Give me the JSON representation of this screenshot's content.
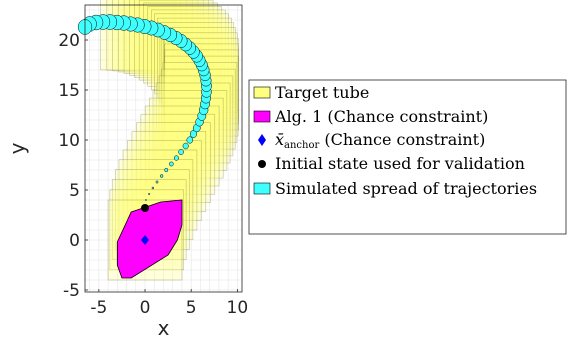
{
  "chart_data": {
    "type": "scatter",
    "xlabel": "x",
    "ylabel": "y",
    "xlim": [
      -6.5,
      10.5
    ],
    "ylim": [
      -5.2,
      23.5
    ],
    "xticks": [
      -5,
      0,
      5,
      10
    ],
    "yticks": [
      -5,
      0,
      5,
      10,
      15,
      20
    ],
    "xtick_labels": [
      "-5",
      "0",
      "5",
      "10"
    ],
    "ytick_labels": [
      "-5",
      "0",
      "5",
      "10",
      "15",
      "20"
    ],
    "grid": true,
    "legend_position": "right",
    "colors": {
      "target_tube": "#ffff80",
      "alg1": "#ff00ff",
      "anchor": "#0000ff",
      "initial_state": "#000000",
      "trajectories": "#40ffff"
    },
    "target_tube_center": {
      "x": [
        0.0,
        0.19,
        0.45,
        0.79,
        1.18,
        1.62,
        2.09,
        2.58,
        3.07,
        3.55,
        4.02,
        4.46,
        4.86,
        5.21,
        5.51,
        5.76,
        5.95,
        6.08,
        6.14,
        6.14,
        6.09,
        5.98,
        5.82,
        5.61,
        5.35,
        5.04,
        4.69,
        4.29,
        3.85,
        3.37,
        2.86,
        2.31,
        1.73,
        1.13,
        0.5,
        -0.14,
        -0.8
      ],
      "y": [
        0.0,
        1.02,
        2.04,
        3.04,
        4.03,
        5.0,
        5.94,
        6.85,
        7.73,
        8.58,
        9.4,
        10.19,
        10.96,
        11.7,
        12.41,
        13.09,
        13.75,
        14.39,
        15.01,
        15.61,
        16.18,
        16.72,
        17.24,
        17.73,
        18.19,
        18.62,
        19.01,
        19.37,
        19.7,
        19.99,
        20.25,
        20.47,
        20.66,
        20.8,
        20.91,
        20.98,
        21.01
      ],
      "half_width": 4.0
    },
    "trajectory_spread": {
      "x": [
        0.1,
        0.45,
        0.85,
        1.3,
        1.8,
        2.3,
        2.85,
        3.4,
        3.9,
        4.4,
        4.85,
        5.25,
        5.6,
        5.9,
        6.15,
        6.35,
        6.5,
        6.6,
        6.65,
        6.65,
        6.6,
        6.5,
        6.35,
        6.15,
        5.9,
        5.6,
        5.25,
        4.85,
        4.4,
        3.9,
        3.35,
        2.75,
        2.1,
        1.4,
        0.7,
        -0.05,
        -0.8,
        -1.55,
        -2.3,
        -3.05,
        -3.8,
        -4.55,
        -5.3,
        -6.0,
        -6.5
      ],
      "y": [
        4.0,
        4.6,
        5.2,
        5.8,
        6.4,
        7.0,
        7.6,
        8.2,
        8.8,
        9.4,
        10.0,
        10.6,
        11.2,
        11.8,
        12.4,
        13.0,
        13.6,
        14.2,
        14.8,
        15.4,
        15.95,
        16.5,
        17.0,
        17.5,
        17.95,
        18.4,
        18.8,
        19.2,
        19.55,
        19.9,
        20.2,
        20.5,
        20.75,
        21.0,
        21.2,
        21.35,
        21.5,
        21.6,
        21.7,
        21.75,
        21.8,
        21.8,
        21.75,
        21.6,
        21.3
      ],
      "radius": [
        0.06,
        0.08,
        0.1,
        0.12,
        0.15,
        0.18,
        0.21,
        0.24,
        0.27,
        0.3,
        0.33,
        0.36,
        0.39,
        0.42,
        0.45,
        0.48,
        0.5,
        0.52,
        0.54,
        0.56,
        0.57,
        0.58,
        0.6,
        0.61,
        0.62,
        0.63,
        0.64,
        0.65,
        0.66,
        0.67,
        0.68,
        0.69,
        0.7,
        0.71,
        0.72,
        0.72,
        0.73,
        0.73,
        0.74,
        0.74,
        0.75,
        0.75,
        0.75,
        0.75,
        0.75
      ]
    },
    "chance_constraint_region": {
      "x": [
        -1.5,
        1.7,
        4.0,
        4.0,
        3.5,
        2.5,
        -1.5,
        -2.5,
        -3.0,
        -3.0
      ],
      "y": [
        2.8,
        3.8,
        4.0,
        1.5,
        0.0,
        -1.5,
        -3.8,
        -3.8,
        -2.5,
        -0.2
      ]
    },
    "anchor_point": {
      "x": 0.0,
      "y": 0.0
    },
    "initial_state": {
      "x": 0.0,
      "y": 3.2
    },
    "legend": [
      {
        "key": "target_tube",
        "label": "Target tube"
      },
      {
        "key": "alg1",
        "label": "Alg. 1 (Chance constraint)"
      },
      {
        "key": "anchor",
        "label_prefix": "x̄",
        "label_sub": "anchor",
        "label_suffix": " (Chance constraint)"
      },
      {
        "key": "initial_state",
        "label": "Initial state used for validation"
      },
      {
        "key": "trajectories",
        "label": "Simulated spread of trajectories"
      }
    ]
  }
}
